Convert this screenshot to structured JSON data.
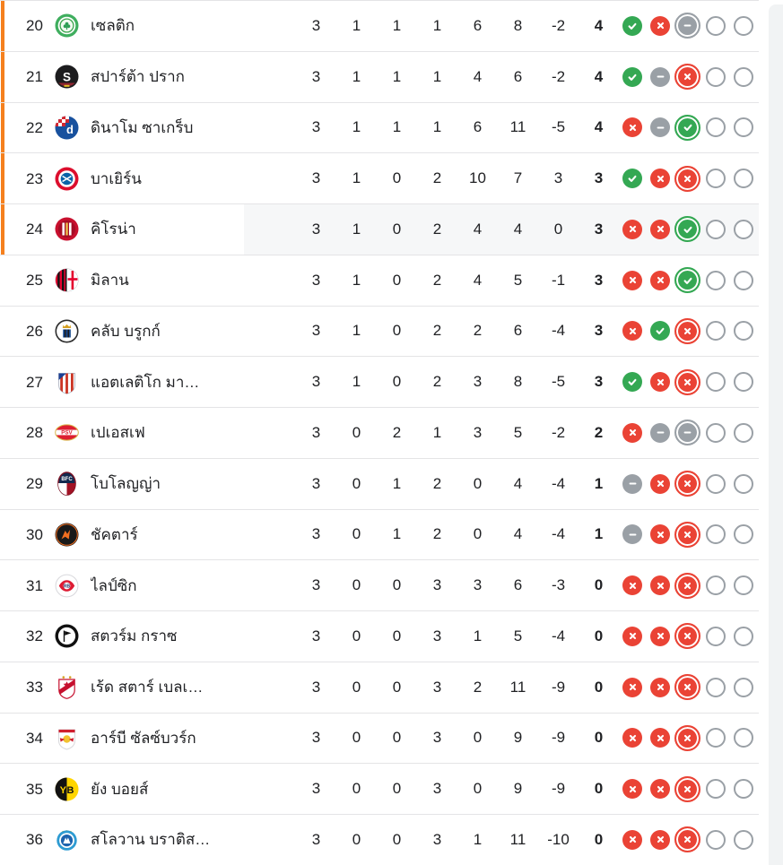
{
  "colors": {
    "playoff_accent": "#f5801e",
    "win": "#34a853",
    "loss": "#ea4335",
    "draw": "#9aa0a6",
    "neutral_outline": "#9aa0a6"
  },
  "table": {
    "rows": [
      {
        "rank": "20",
        "name": "เซลติก",
        "logo": "celtic",
        "playoff_zone": true,
        "highlighted": false,
        "played": "3",
        "won": "1",
        "drawn": "1",
        "lost": "1",
        "goals_for": "6",
        "goals_against": "8",
        "goal_diff": "-2",
        "points": "4",
        "form": [
          {
            "result": "win"
          },
          {
            "result": "loss"
          },
          {
            "result": "draw",
            "latest": true
          },
          {
            "result": "empty"
          },
          {
            "result": "empty"
          }
        ]
      },
      {
        "rank": "21",
        "name": "สปาร์ต้า ปราก",
        "logo": "sparta-prague",
        "playoff_zone": true,
        "highlighted": false,
        "played": "3",
        "won": "1",
        "drawn": "1",
        "lost": "1",
        "goals_for": "4",
        "goals_against": "6",
        "goal_diff": "-2",
        "points": "4",
        "form": [
          {
            "result": "win"
          },
          {
            "result": "draw"
          },
          {
            "result": "loss",
            "latest": true
          },
          {
            "result": "empty"
          },
          {
            "result": "empty"
          }
        ]
      },
      {
        "rank": "22",
        "name": "ดินาโม ซาเกร็บ",
        "logo": "dinamo-zagreb",
        "playoff_zone": true,
        "highlighted": false,
        "played": "3",
        "won": "1",
        "drawn": "1",
        "lost": "1",
        "goals_for": "6",
        "goals_against": "11",
        "goal_diff": "-5",
        "points": "4",
        "form": [
          {
            "result": "loss"
          },
          {
            "result": "draw"
          },
          {
            "result": "win",
            "latest": true
          },
          {
            "result": "empty"
          },
          {
            "result": "empty"
          }
        ]
      },
      {
        "rank": "23",
        "name": "บาเยิร์น",
        "logo": "bayern",
        "playoff_zone": true,
        "highlighted": false,
        "played": "3",
        "won": "1",
        "drawn": "0",
        "lost": "2",
        "goals_for": "10",
        "goals_against": "7",
        "goal_diff": "3",
        "points": "3",
        "form": [
          {
            "result": "win"
          },
          {
            "result": "loss"
          },
          {
            "result": "loss",
            "latest": true
          },
          {
            "result": "empty"
          },
          {
            "result": "empty"
          }
        ]
      },
      {
        "rank": "24",
        "name": "คิโรน่า",
        "logo": "girona",
        "playoff_zone": true,
        "highlighted": true,
        "played": "3",
        "won": "1",
        "drawn": "0",
        "lost": "2",
        "goals_for": "4",
        "goals_against": "4",
        "goal_diff": "0",
        "points": "3",
        "form": [
          {
            "result": "loss"
          },
          {
            "result": "loss"
          },
          {
            "result": "win",
            "latest": true
          },
          {
            "result": "empty"
          },
          {
            "result": "empty"
          }
        ]
      },
      {
        "rank": "25",
        "name": "มิลาน",
        "logo": "milan",
        "playoff_zone": false,
        "highlighted": false,
        "played": "3",
        "won": "1",
        "drawn": "0",
        "lost": "2",
        "goals_for": "4",
        "goals_against": "5",
        "goal_diff": "-1",
        "points": "3",
        "form": [
          {
            "result": "loss"
          },
          {
            "result": "loss"
          },
          {
            "result": "win",
            "latest": true
          },
          {
            "result": "empty"
          },
          {
            "result": "empty"
          }
        ]
      },
      {
        "rank": "26",
        "name": "คลับ บรูกก์",
        "logo": "club-brugge",
        "playoff_zone": false,
        "highlighted": false,
        "played": "3",
        "won": "1",
        "drawn": "0",
        "lost": "2",
        "goals_for": "2",
        "goals_against": "6",
        "goal_diff": "-4",
        "points": "3",
        "form": [
          {
            "result": "loss"
          },
          {
            "result": "win"
          },
          {
            "result": "loss",
            "latest": true
          },
          {
            "result": "empty"
          },
          {
            "result": "empty"
          }
        ]
      },
      {
        "rank": "27",
        "name": "แอตเลติโก มา…",
        "logo": "atletico-madrid",
        "playoff_zone": false,
        "highlighted": false,
        "played": "3",
        "won": "1",
        "drawn": "0",
        "lost": "2",
        "goals_for": "3",
        "goals_against": "8",
        "goal_diff": "-5",
        "points": "3",
        "form": [
          {
            "result": "win"
          },
          {
            "result": "loss"
          },
          {
            "result": "loss",
            "latest": true
          },
          {
            "result": "empty"
          },
          {
            "result": "empty"
          }
        ]
      },
      {
        "rank": "28",
        "name": "เปเอสเฟ",
        "logo": "psv",
        "playoff_zone": false,
        "highlighted": false,
        "played": "3",
        "won": "0",
        "drawn": "2",
        "lost": "1",
        "goals_for": "3",
        "goals_against": "5",
        "goal_diff": "-2",
        "points": "2",
        "form": [
          {
            "result": "loss"
          },
          {
            "result": "draw"
          },
          {
            "result": "draw",
            "latest": true
          },
          {
            "result": "empty"
          },
          {
            "result": "empty"
          }
        ]
      },
      {
        "rank": "29",
        "name": "โบโลญญ่า",
        "logo": "bologna",
        "playoff_zone": false,
        "highlighted": false,
        "played": "3",
        "won": "0",
        "drawn": "1",
        "lost": "2",
        "goals_for": "0",
        "goals_against": "4",
        "goal_diff": "-4",
        "points": "1",
        "form": [
          {
            "result": "draw"
          },
          {
            "result": "loss"
          },
          {
            "result": "loss",
            "latest": true
          },
          {
            "result": "empty"
          },
          {
            "result": "empty"
          }
        ]
      },
      {
        "rank": "30",
        "name": "ชัคตาร์",
        "logo": "shakhtar",
        "playoff_zone": false,
        "highlighted": false,
        "played": "3",
        "won": "0",
        "drawn": "1",
        "lost": "2",
        "goals_for": "0",
        "goals_against": "4",
        "goal_diff": "-4",
        "points": "1",
        "form": [
          {
            "result": "draw"
          },
          {
            "result": "loss"
          },
          {
            "result": "loss",
            "latest": true
          },
          {
            "result": "empty"
          },
          {
            "result": "empty"
          }
        ]
      },
      {
        "rank": "31",
        "name": "ไลป์ซิก",
        "logo": "leipzig",
        "playoff_zone": false,
        "highlighted": false,
        "played": "3",
        "won": "0",
        "drawn": "0",
        "lost": "3",
        "goals_for": "3",
        "goals_against": "6",
        "goal_diff": "-3",
        "points": "0",
        "form": [
          {
            "result": "loss"
          },
          {
            "result": "loss"
          },
          {
            "result": "loss",
            "latest": true
          },
          {
            "result": "empty"
          },
          {
            "result": "empty"
          }
        ]
      },
      {
        "rank": "32",
        "name": "สตวร์ม กราซ",
        "logo": "sturm-graz",
        "playoff_zone": false,
        "highlighted": false,
        "played": "3",
        "won": "0",
        "drawn": "0",
        "lost": "3",
        "goals_for": "1",
        "goals_against": "5",
        "goal_diff": "-4",
        "points": "0",
        "form": [
          {
            "result": "loss"
          },
          {
            "result": "loss"
          },
          {
            "result": "loss",
            "latest": true
          },
          {
            "result": "empty"
          },
          {
            "result": "empty"
          }
        ]
      },
      {
        "rank": "33",
        "name": "เร้ด สตาร์ เบลเ…",
        "logo": "red-star-belgrade",
        "playoff_zone": false,
        "highlighted": false,
        "played": "3",
        "won": "0",
        "drawn": "0",
        "lost": "3",
        "goals_for": "2",
        "goals_against": "11",
        "goal_diff": "-9",
        "points": "0",
        "form": [
          {
            "result": "loss"
          },
          {
            "result": "loss"
          },
          {
            "result": "loss",
            "latest": true
          },
          {
            "result": "empty"
          },
          {
            "result": "empty"
          }
        ]
      },
      {
        "rank": "34",
        "name": "อาร์บี ซัลซ์บวร์ก",
        "logo": "rb-salzburg",
        "playoff_zone": false,
        "highlighted": false,
        "played": "3",
        "won": "0",
        "drawn": "0",
        "lost": "3",
        "goals_for": "0",
        "goals_against": "9",
        "goal_diff": "-9",
        "points": "0",
        "form": [
          {
            "result": "loss"
          },
          {
            "result": "loss"
          },
          {
            "result": "loss",
            "latest": true
          },
          {
            "result": "empty"
          },
          {
            "result": "empty"
          }
        ]
      },
      {
        "rank": "35",
        "name": "ยัง บอยส์",
        "logo": "young-boys",
        "playoff_zone": false,
        "highlighted": false,
        "played": "3",
        "won": "0",
        "drawn": "0",
        "lost": "3",
        "goals_for": "0",
        "goals_against": "9",
        "goal_diff": "-9",
        "points": "0",
        "form": [
          {
            "result": "loss"
          },
          {
            "result": "loss"
          },
          {
            "result": "loss",
            "latest": true
          },
          {
            "result": "empty"
          },
          {
            "result": "empty"
          }
        ]
      },
      {
        "rank": "36",
        "name": "สโลวาน บราติส…",
        "logo": "slovan-bratislava",
        "playoff_zone": false,
        "highlighted": false,
        "played": "3",
        "won": "0",
        "drawn": "0",
        "lost": "3",
        "goals_for": "1",
        "goals_against": "11",
        "goal_diff": "-10",
        "points": "0",
        "form": [
          {
            "result": "loss"
          },
          {
            "result": "loss"
          },
          {
            "result": "loss",
            "latest": true
          },
          {
            "result": "empty"
          },
          {
            "result": "empty"
          }
        ]
      }
    ]
  }
}
